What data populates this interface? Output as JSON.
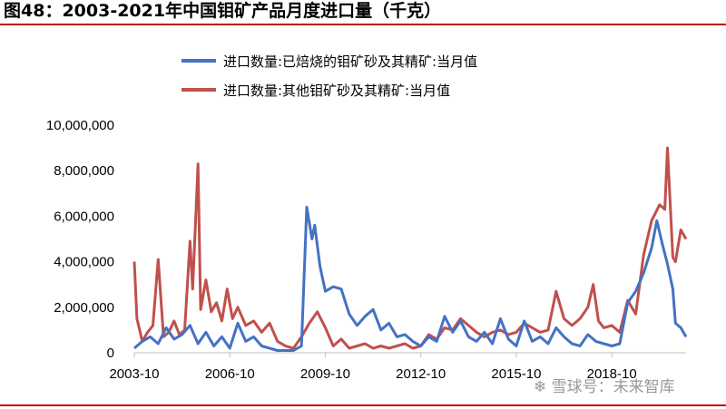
{
  "figure": {
    "title": "图48：2003-2021年中国钼矿产品月度进口量（千克）"
  },
  "watermark": {
    "text": "雪球号：未来智库",
    "icon": "snowball-icon"
  },
  "colors": {
    "series_blue": "#4472c4",
    "series_red": "#c0504d",
    "accent_rule": "#c00000",
    "axis": "#bfbfbf"
  },
  "chart_data": {
    "type": "line",
    "title": "",
    "xlabel": "",
    "ylabel": "",
    "x_start": "2003-10",
    "x_end": "2021-02",
    "xlim": [
      "2003-10",
      "2021-02"
    ],
    "ylim": [
      0,
      10000000
    ],
    "yticks": [
      0,
      2000000,
      4000000,
      6000000,
      8000000,
      10000000
    ],
    "ytick_labels": [
      "0",
      "2,000,000",
      "4,000,000",
      "6,000,000",
      "8,000,000",
      "10,000,000"
    ],
    "xticks": [
      "2003-10",
      "2006-10",
      "2009-10",
      "2012-10",
      "2015-10",
      "2018-10"
    ],
    "grid": false,
    "legend_position": "top",
    "series": [
      {
        "name": "进口数量:已焙烧的钼矿砂及其精矿:当月值",
        "color": "#4472c4",
        "points": [
          [
            "2003-10",
            200000
          ],
          [
            "2004-01",
            500000
          ],
          [
            "2004-04",
            700000
          ],
          [
            "2004-07",
            400000
          ],
          [
            "2004-10",
            1100000
          ],
          [
            "2005-01",
            600000
          ],
          [
            "2005-04",
            800000
          ],
          [
            "2005-07",
            1200000
          ],
          [
            "2005-10",
            400000
          ],
          [
            "2006-01",
            900000
          ],
          [
            "2006-04",
            300000
          ],
          [
            "2006-07",
            700000
          ],
          [
            "2006-10",
            200000
          ],
          [
            "2007-01",
            1300000
          ],
          [
            "2007-04",
            500000
          ],
          [
            "2007-07",
            700000
          ],
          [
            "2007-10",
            300000
          ],
          [
            "2008-01",
            200000
          ],
          [
            "2008-04",
            100000
          ],
          [
            "2008-07",
            100000
          ],
          [
            "2008-10",
            100000
          ],
          [
            "2009-01",
            300000
          ],
          [
            "2009-03",
            6400000
          ],
          [
            "2009-05",
            5000000
          ],
          [
            "2009-06",
            5600000
          ],
          [
            "2009-08",
            3800000
          ],
          [
            "2009-10",
            2700000
          ],
          [
            "2010-01",
            2900000
          ],
          [
            "2010-04",
            2800000
          ],
          [
            "2010-07",
            1700000
          ],
          [
            "2010-10",
            1200000
          ],
          [
            "2011-01",
            1600000
          ],
          [
            "2011-04",
            1900000
          ],
          [
            "2011-07",
            1000000
          ],
          [
            "2011-10",
            1300000
          ],
          [
            "2012-01",
            700000
          ],
          [
            "2012-04",
            800000
          ],
          [
            "2012-07",
            500000
          ],
          [
            "2012-10",
            300000
          ],
          [
            "2013-01",
            700000
          ],
          [
            "2013-04",
            500000
          ],
          [
            "2013-07",
            1600000
          ],
          [
            "2013-10",
            900000
          ],
          [
            "2014-01",
            1400000
          ],
          [
            "2014-04",
            700000
          ],
          [
            "2014-07",
            500000
          ],
          [
            "2014-10",
            900000
          ],
          [
            "2015-01",
            400000
          ],
          [
            "2015-04",
            1500000
          ],
          [
            "2015-07",
            600000
          ],
          [
            "2015-10",
            300000
          ],
          [
            "2016-01",
            1400000
          ],
          [
            "2016-04",
            500000
          ],
          [
            "2016-07",
            700000
          ],
          [
            "2016-10",
            400000
          ],
          [
            "2017-01",
            1100000
          ],
          [
            "2017-04",
            700000
          ],
          [
            "2017-07",
            400000
          ],
          [
            "2017-10",
            300000
          ],
          [
            "2018-01",
            800000
          ],
          [
            "2018-04",
            500000
          ],
          [
            "2018-07",
            400000
          ],
          [
            "2018-10",
            300000
          ],
          [
            "2019-01",
            400000
          ],
          [
            "2019-04",
            2200000
          ],
          [
            "2019-07",
            2700000
          ],
          [
            "2019-10",
            3500000
          ],
          [
            "2020-01",
            4600000
          ],
          [
            "2020-03",
            5800000
          ],
          [
            "2020-05",
            4800000
          ],
          [
            "2020-07",
            3900000
          ],
          [
            "2020-09",
            2800000
          ],
          [
            "2020-10",
            1300000
          ],
          [
            "2020-12",
            1100000
          ],
          [
            "2021-02",
            700000
          ]
        ]
      },
      {
        "name": "进口数量:其他钼矿砂及其精矿:当月值",
        "color": "#c0504d",
        "points": [
          [
            "2003-10",
            4000000
          ],
          [
            "2003-11",
            1500000
          ],
          [
            "2004-01",
            500000
          ],
          [
            "2004-03",
            900000
          ],
          [
            "2004-05",
            1200000
          ],
          [
            "2004-07",
            4100000
          ],
          [
            "2004-09",
            700000
          ],
          [
            "2004-11",
            900000
          ],
          [
            "2005-01",
            1400000
          ],
          [
            "2005-03",
            800000
          ],
          [
            "2005-05",
            1000000
          ],
          [
            "2005-07",
            4900000
          ],
          [
            "2005-08",
            2800000
          ],
          [
            "2005-10",
            8300000
          ],
          [
            "2005-11",
            1900000
          ],
          [
            "2006-01",
            3200000
          ],
          [
            "2006-03",
            1800000
          ],
          [
            "2006-05",
            2200000
          ],
          [
            "2006-07",
            1400000
          ],
          [
            "2006-09",
            2800000
          ],
          [
            "2006-11",
            1500000
          ],
          [
            "2007-01",
            2000000
          ],
          [
            "2007-04",
            1200000
          ],
          [
            "2007-07",
            1400000
          ],
          [
            "2007-10",
            900000
          ],
          [
            "2008-01",
            1300000
          ],
          [
            "2008-04",
            500000
          ],
          [
            "2008-07",
            300000
          ],
          [
            "2008-10",
            200000
          ],
          [
            "2009-01",
            700000
          ],
          [
            "2009-04",
            1300000
          ],
          [
            "2009-07",
            1800000
          ],
          [
            "2009-10",
            1100000
          ],
          [
            "2010-01",
            300000
          ],
          [
            "2010-04",
            600000
          ],
          [
            "2010-07",
            200000
          ],
          [
            "2010-10",
            300000
          ],
          [
            "2011-01",
            400000
          ],
          [
            "2011-04",
            200000
          ],
          [
            "2011-07",
            300000
          ],
          [
            "2011-10",
            200000
          ],
          [
            "2012-01",
            300000
          ],
          [
            "2012-04",
            400000
          ],
          [
            "2012-07",
            200000
          ],
          [
            "2012-10",
            300000
          ],
          [
            "2013-01",
            800000
          ],
          [
            "2013-04",
            600000
          ],
          [
            "2013-07",
            1100000
          ],
          [
            "2013-10",
            1000000
          ],
          [
            "2014-01",
            1500000
          ],
          [
            "2014-04",
            1200000
          ],
          [
            "2014-07",
            900000
          ],
          [
            "2014-10",
            700000
          ],
          [
            "2015-01",
            900000
          ],
          [
            "2015-04",
            1000000
          ],
          [
            "2015-07",
            800000
          ],
          [
            "2015-10",
            900000
          ],
          [
            "2016-01",
            1300000
          ],
          [
            "2016-04",
            1100000
          ],
          [
            "2016-07",
            900000
          ],
          [
            "2016-10",
            1000000
          ],
          [
            "2017-01",
            2700000
          ],
          [
            "2017-04",
            1500000
          ],
          [
            "2017-07",
            1200000
          ],
          [
            "2017-10",
            1500000
          ],
          [
            "2018-01",
            2000000
          ],
          [
            "2018-03",
            3000000
          ],
          [
            "2018-05",
            1400000
          ],
          [
            "2018-07",
            1100000
          ],
          [
            "2018-10",
            1200000
          ],
          [
            "2019-01",
            900000
          ],
          [
            "2019-04",
            2300000
          ],
          [
            "2019-07",
            1700000
          ],
          [
            "2019-10",
            4300000
          ],
          [
            "2020-01",
            5800000
          ],
          [
            "2020-04",
            6500000
          ],
          [
            "2020-06",
            6300000
          ],
          [
            "2020-07",
            9000000
          ],
          [
            "2020-09",
            4200000
          ],
          [
            "2020-10",
            4000000
          ],
          [
            "2020-12",
            5400000
          ],
          [
            "2021-02",
            5000000
          ]
        ]
      }
    ]
  }
}
